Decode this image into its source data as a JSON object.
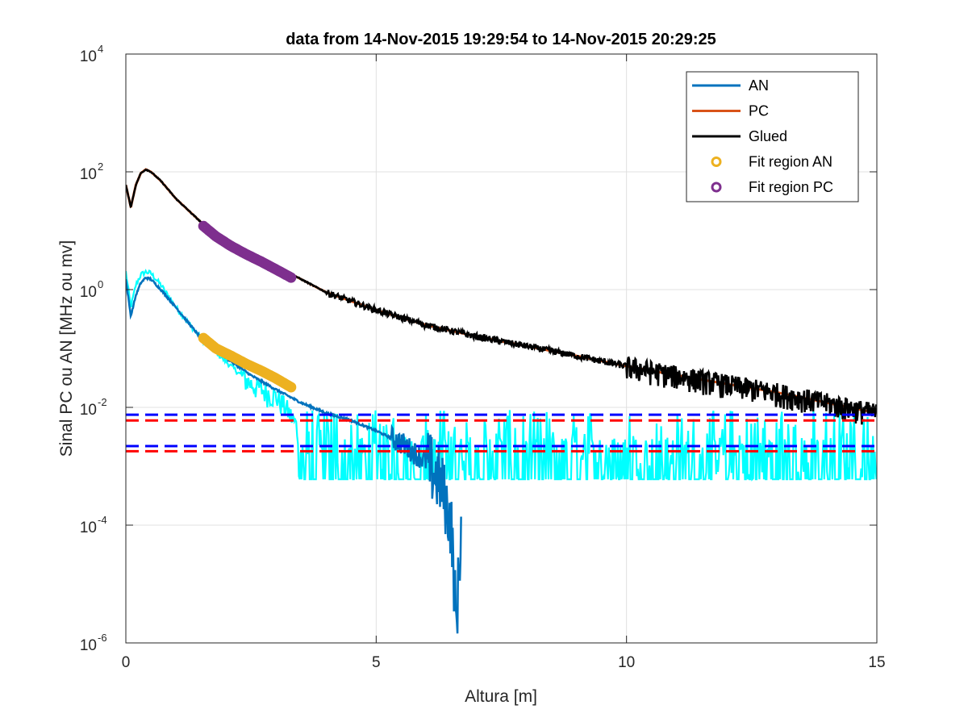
{
  "chart_data": {
    "type": "line",
    "title": "data from 14-Nov-2015 19:29:54 to 14-Nov-2015 20:29:25",
    "xlabel": "Altura [m]",
    "ylabel": "Sinal PC ou AN [MHz ou mv]",
    "xlim": [
      0,
      15
    ],
    "ylim": [
      1e-06,
      10000.0
    ],
    "yscale": "log",
    "grid": true,
    "legend_position": "top-right",
    "x_ticks": [
      "0",
      "5",
      "10",
      "15"
    ],
    "y_ticks": [
      {
        "base": "10",
        "exp": "-6",
        "value": 1e-06
      },
      {
        "base": "10",
        "exp": "-4",
        "value": 0.0001
      },
      {
        "base": "10",
        "exp": "-2",
        "value": 0.01
      },
      {
        "base": "10",
        "exp": "0",
        "value": 1
      },
      {
        "base": "10",
        "exp": "2",
        "value": 100
      },
      {
        "base": "10",
        "exp": "4",
        "value": 10000
      }
    ],
    "colors": {
      "AN": "#0072BD",
      "PC": "#D95319",
      "Glued": "#000000",
      "FitAN": "#EDB120",
      "FitPC": "#7E2F8E",
      "cyan": "#00FFFF",
      "blue": "#0000FF",
      "red": "#FF0000"
    },
    "series": [
      {
        "name": "AN",
        "x": [
          0,
          0.1,
          0.2,
          0.3,
          0.4,
          0.5,
          0.7,
          1.0,
          1.5,
          2.0,
          2.5,
          3.0,
          3.5,
          4.0,
          4.5,
          5.0,
          5.5,
          6.0,
          6.3,
          6.5,
          6.6,
          6.7
        ],
        "y": [
          1.5,
          0.35,
          0.8,
          1.3,
          1.6,
          1.5,
          1.0,
          0.5,
          0.15,
          0.07,
          0.035,
          0.02,
          0.012,
          0.008,
          0.006,
          0.004,
          0.0025,
          0.0012,
          0.0005,
          0.0001,
          2e-06,
          0.0001
        ]
      },
      {
        "name": "PC",
        "x": [
          0,
          0.1,
          0.2,
          0.3,
          0.4,
          0.5,
          0.7,
          1.0,
          1.5,
          2.0,
          2.5,
          3.0,
          3.5,
          4.0,
          5.0,
          6.0,
          7.0,
          8.0,
          9.0,
          10.0,
          11.0,
          12.0,
          13.0,
          14.0,
          15.0
        ],
        "y": [
          60,
          25,
          60,
          95,
          110,
          100,
          70,
          35,
          14,
          7,
          4,
          2.5,
          1.5,
          0.9,
          0.45,
          0.25,
          0.16,
          0.11,
          0.075,
          0.05,
          0.035,
          0.025,
          0.018,
          0.012,
          0.008
        ]
      },
      {
        "name": "Glued",
        "x": [
          0,
          0.1,
          0.2,
          0.3,
          0.4,
          0.5,
          0.7,
          1.0,
          1.5,
          2.0,
          2.5,
          3.0,
          3.5,
          4.0,
          5.0,
          6.0,
          7.0,
          8.0,
          9.0,
          10.0,
          11.0,
          12.0,
          13.0,
          14.0,
          15.0
        ],
        "y": [
          60,
          25,
          60,
          95,
          110,
          100,
          70,
          35,
          14,
          7,
          4,
          2.5,
          1.5,
          0.9,
          0.45,
          0.25,
          0.16,
          0.11,
          0.075,
          0.05,
          0.035,
          0.025,
          0.018,
          0.012,
          0.008
        ]
      },
      {
        "name": "Fit region AN",
        "x": [
          1.55,
          1.8,
          2.1,
          2.4,
          2.7,
          3.0,
          3.3
        ],
        "y": [
          0.15,
          0.1,
          0.075,
          0.055,
          0.042,
          0.031,
          0.022
        ]
      },
      {
        "name": "Fit region PC",
        "x": [
          1.55,
          1.8,
          2.1,
          2.4,
          2.7,
          3.0,
          3.3
        ],
        "y": [
          12,
          8,
          5.5,
          4,
          3,
          2.2,
          1.6
        ]
      },
      {
        "x": [
          0,
          0.1,
          0.2,
          0.3,
          0.4,
          0.5,
          0.7,
          1.0,
          1.5,
          2.0,
          2.5,
          3.0,
          3.2,
          3.4,
          3.5,
          15.0
        ],
        "y": [
          2,
          0.5,
          1.2,
          1.8,
          2.0,
          1.9,
          1.2,
          0.5,
          0.15,
          0.06,
          0.025,
          0.015,
          0.01,
          0.005,
          0.002,
          0.002
        ]
      },
      {
        "x": [
          0,
          15
        ],
        "y": [
          0.0075,
          0.0075
        ]
      },
      {
        "x": [
          0,
          15
        ],
        "y": [
          0.006,
          0.006
        ]
      },
      {
        "x": [
          0,
          15
        ],
        "y": [
          0.0022,
          0.0022
        ]
      },
      {
        "x": [
          0,
          15
        ],
        "y": [
          0.0018,
          0.0018
        ]
      }
    ],
    "legend": [
      {
        "label": "AN",
        "kind": "line",
        "color": "#0072BD"
      },
      {
        "label": "PC",
        "kind": "line",
        "color": "#D95319"
      },
      {
        "label": "Glued",
        "kind": "line",
        "color": "#000000"
      },
      {
        "label": "Fit region AN",
        "kind": "marker",
        "color": "#EDB120"
      },
      {
        "label": "Fit region PC",
        "kind": "marker",
        "color": "#7E2F8E"
      }
    ]
  }
}
